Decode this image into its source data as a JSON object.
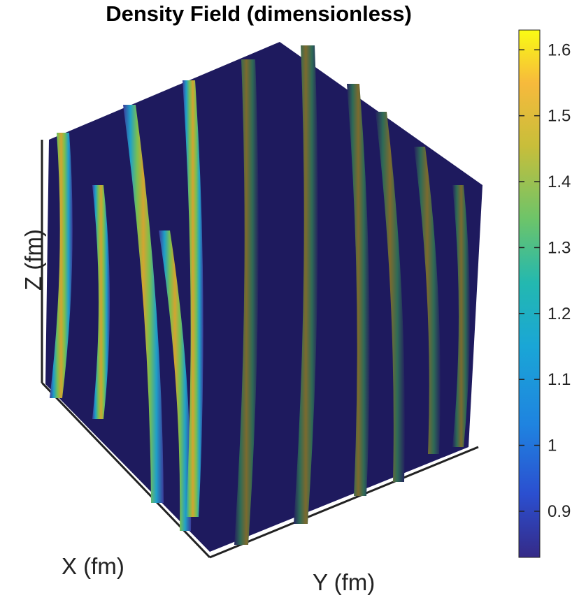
{
  "chart_data": {
    "type": "heatmap",
    "title": "Density Field (dimensionless)",
    "xlabel": "X (fm)",
    "ylabel": "Y (fm)",
    "zlabel": "Z (fm)",
    "colorbar": {
      "range": [
        0.83,
        1.63
      ],
      "ticks": [
        "0.9",
        "1",
        "1.1",
        "1.2",
        "1.3",
        "1.4",
        "1.5",
        "1.6"
      ],
      "tick_values": [
        0.9,
        1.0,
        1.1,
        1.2,
        1.3,
        1.4,
        1.5,
        1.6
      ],
      "colormap": "parula"
    },
    "grid": false,
    "colors": {
      "low": "#201c68",
      "mid": "#23a9c8",
      "high": "#f9fb14"
    }
  }
}
